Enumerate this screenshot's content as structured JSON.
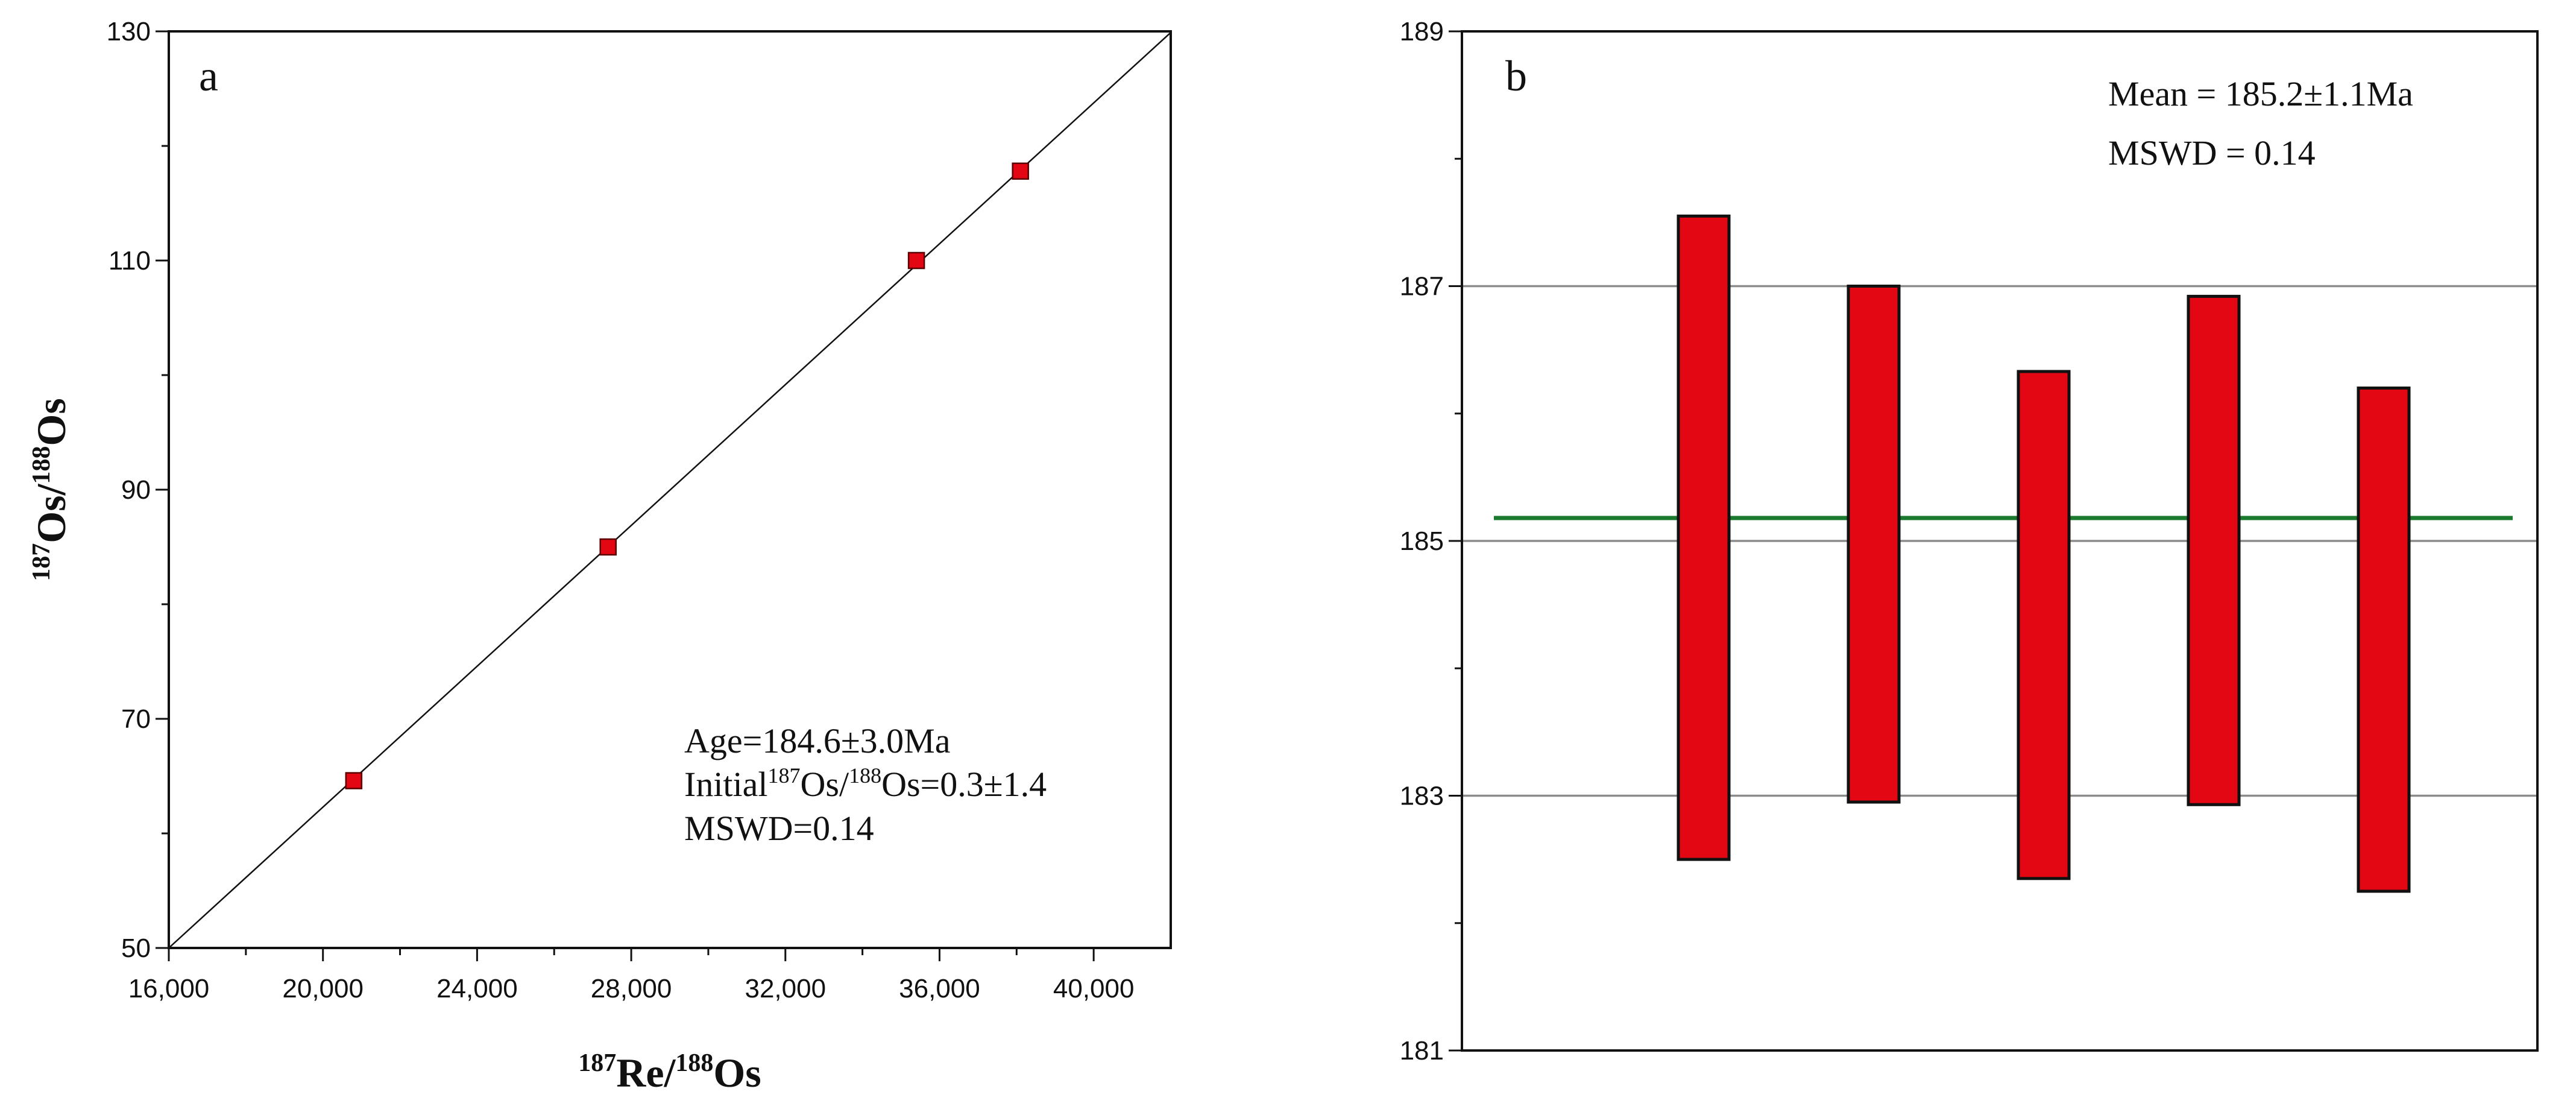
{
  "colors": {
    "marker": "#e30613",
    "bar": "#e30613",
    "mean_line": "#1a7a2e",
    "gridline": "#8c8c8c",
    "axis": "#111111"
  },
  "chart_data": [
    {
      "type": "scatter",
      "panel_label": "a",
      "xlabel": {
        "sup1": "187",
        "base1": "Re/",
        "sup2": "188",
        "base2": "Os"
      },
      "ylabel": {
        "sup1": "187",
        "base1": "Os/",
        "sup2": "188",
        "base2": "Os"
      },
      "xlim": [
        16000,
        42000
      ],
      "ylim": [
        50,
        130
      ],
      "xticks": [
        16000,
        20000,
        24000,
        28000,
        32000,
        36000,
        40000
      ],
      "xtick_labels": [
        "16,000",
        "20,000",
        "24,000",
        "28,000",
        "32,000",
        "36,000",
        "40,000"
      ],
      "yticks": [
        50,
        70,
        90,
        110,
        130
      ],
      "ytick_labels": [
        "50",
        "70",
        "90",
        "110",
        "130"
      ],
      "points": [
        {
          "x": 20800,
          "y": 64.6
        },
        {
          "x": 27400,
          "y": 85.0
        },
        {
          "x": 35400,
          "y": 110.0
        },
        {
          "x": 38100,
          "y": 117.8
        }
      ],
      "regression_line": {
        "x": [
          16000,
          42000
        ],
        "y": [
          50.0,
          129.9
        ]
      },
      "annotation": {
        "age": "Age=184.6±3.0Ma",
        "initial_prefix": "Initial",
        "initial_sup1": "187",
        "initial_mid": "Os/",
        "initial_sup2": "188",
        "initial_suffix": "Os=0.3±1.4",
        "mswd": "MSWD=0.14"
      },
      "grid": false
    },
    {
      "type": "bar",
      "subtype": "weighted-mean-error-bars",
      "panel_label": "b",
      "ylim": [
        181,
        189
      ],
      "yticks": [
        181,
        183,
        185,
        187,
        189
      ],
      "ytick_labels": [
        "181",
        "183",
        "185",
        "187",
        "189"
      ],
      "gridlines": [
        183,
        185,
        187
      ],
      "bars": [
        {
          "low": 182.5,
          "high": 187.55
        },
        {
          "low": 182.95,
          "high": 187.0
        },
        {
          "low": 182.35,
          "high": 186.33
        },
        {
          "low": 182.93,
          "high": 186.92
        },
        {
          "low": 182.25,
          "high": 186.2
        }
      ],
      "mean": 185.18,
      "annotation": {
        "mean": "Mean = 185.2±1.1Ma",
        "mswd": "MSWD = 0.14"
      },
      "grid": "horizontal at major ticks"
    }
  ]
}
